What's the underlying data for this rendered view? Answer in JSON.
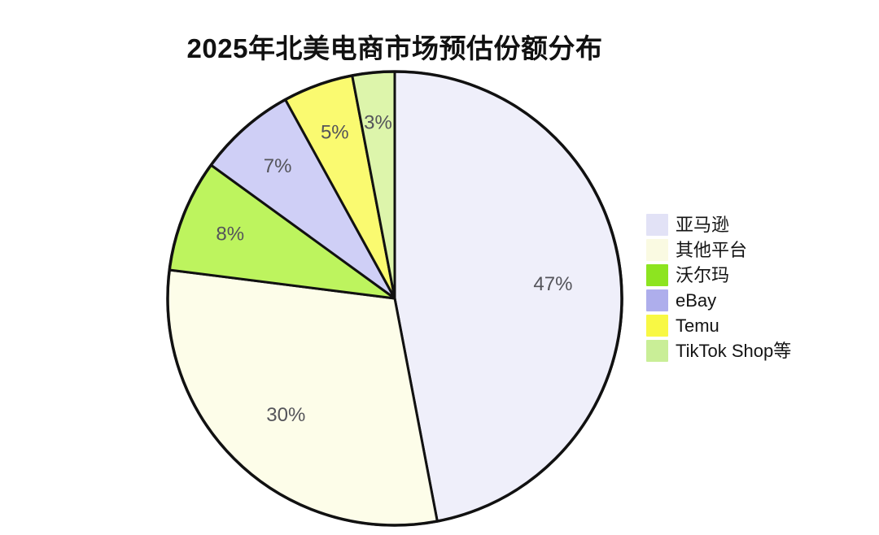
{
  "chart_data": {
    "type": "pie",
    "title": "2025年北美电商市场预估份额分布",
    "start_angle": "top",
    "direction": "clockwise",
    "legend_position": "center-right",
    "background_color": "#ffffff",
    "outline_color": "#111111",
    "title_color": "#111111",
    "pct_label_color": "#54545a",
    "legend_text_color": "#141414",
    "series": [
      {
        "name": "amazon",
        "label": "亚马逊",
        "value": 47,
        "pct_label": "47%",
        "slice_color": "#EFEFFA",
        "legend_color": "#E2E2F6"
      },
      {
        "name": "other-platforms",
        "label": "其他平台",
        "value": 30,
        "pct_label": "30%",
        "slice_color": "#FDFDE9",
        "legend_color": "#FAFAE2"
      },
      {
        "name": "walmart",
        "label": "沃尔玛",
        "value": 8,
        "pct_label": "8%",
        "slice_color": "#BDF45E",
        "legend_color": "#8DE420"
      },
      {
        "name": "ebay",
        "label": "eBay",
        "value": 7,
        "pct_label": "7%",
        "slice_color": "#CFCFF6",
        "legend_color": "#AEAEEC"
      },
      {
        "name": "temu",
        "label": "Temu",
        "value": 5,
        "pct_label": "5%",
        "slice_color": "#FAFA70",
        "legend_color": "#F8F844"
      },
      {
        "name": "tiktok-shop",
        "label": "TikTok Shop等",
        "value": 3,
        "pct_label": "3%",
        "slice_color": "#DDF5AB",
        "legend_color": "#C9EE97"
      }
    ]
  }
}
